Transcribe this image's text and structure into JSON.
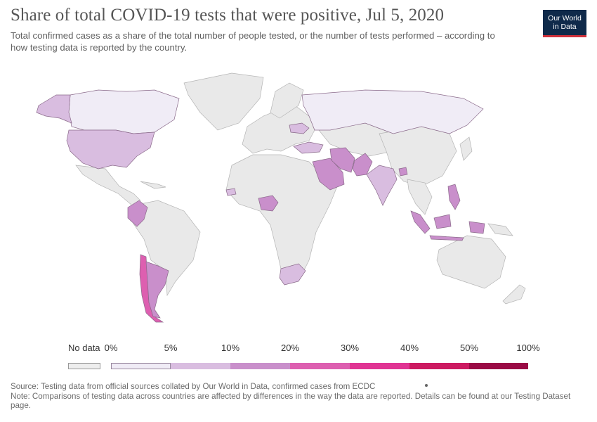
{
  "header": {
    "title": "Share of total COVID-19 tests that were positive, Jul 5, 2020",
    "subtitle": "Total confirmed cases as a share of the total number of people tested, or the number of tests performed – according to how testing data is reported by the country."
  },
  "logo": {
    "line1": "Our World",
    "line2": "in Data"
  },
  "legend": {
    "no_data_label": "No data",
    "no_data_color": "#eeeeee",
    "bins": [
      {
        "label": "0%",
        "color": "#f0ecf6"
      },
      {
        "label": "5%",
        "color": "#d9bde0"
      },
      {
        "label": "10%",
        "color": "#c98fcb"
      },
      {
        "label": "20%",
        "color": "#dd5fb0"
      },
      {
        "label": "30%",
        "color": "#e03493"
      },
      {
        "label": "40%",
        "color": "#cc1a61"
      },
      {
        "label": "50%",
        "color": "#9a0a45"
      }
    ],
    "end_label": "100%"
  },
  "map_data": {
    "regions": [
      {
        "name": "Canada",
        "bin": "0-5%"
      },
      {
        "name": "Alaska (USA)",
        "bin": "5-10%"
      },
      {
        "name": "United States",
        "bin": "5-10%"
      },
      {
        "name": "Colombia",
        "bin": "10-20%"
      },
      {
        "name": "Chile",
        "bin": "20-30%"
      },
      {
        "name": "Argentina",
        "bin": "10-20%"
      },
      {
        "name": "Nigeria",
        "bin": "10-20%"
      },
      {
        "name": "South Africa",
        "bin": "5-10%"
      },
      {
        "name": "Saudi Arabia",
        "bin": "10-20%"
      },
      {
        "name": "Iran",
        "bin": "10-20%"
      },
      {
        "name": "Pakistan",
        "bin": "10-20%"
      },
      {
        "name": "India",
        "bin": "5-10%"
      },
      {
        "name": "Bangladesh",
        "bin": "10-20%"
      },
      {
        "name": "Russia",
        "bin": "0-5%"
      },
      {
        "name": "Turkey",
        "bin": "5-10%"
      },
      {
        "name": "Indonesia",
        "bin": "10-20%"
      },
      {
        "name": "Philippines",
        "bin": "10-20%"
      },
      {
        "name": "Ukraine",
        "bin": "5-10%"
      }
    ]
  },
  "footer": {
    "source": "Source: Testing data from official sources collated by Our World in Data, confirmed cases from ECDC",
    "note": "Note: Comparisons of testing data across countries are affected by differences in the way the data are reported. Details can be found at our Testing Dataset page."
  }
}
